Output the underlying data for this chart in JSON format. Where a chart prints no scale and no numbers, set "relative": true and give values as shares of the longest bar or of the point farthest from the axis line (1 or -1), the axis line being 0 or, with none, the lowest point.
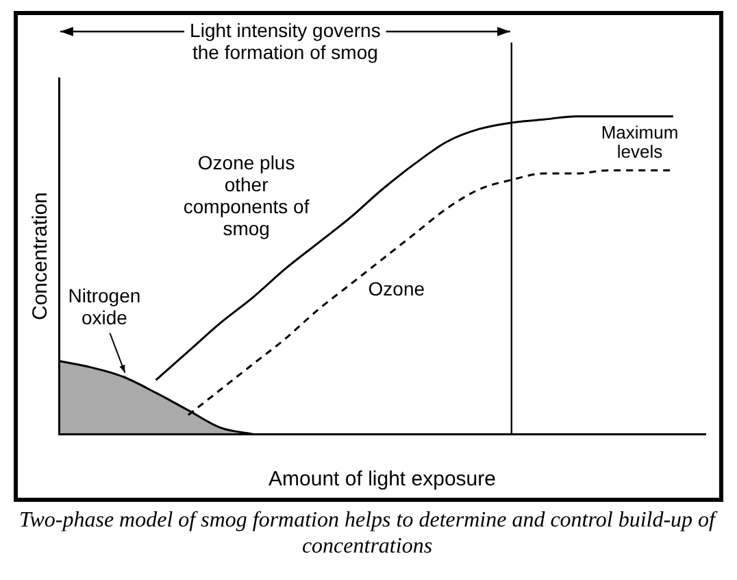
{
  "chart_data": {
    "type": "line",
    "relative": true,
    "xlabel": "Amount of light exposure",
    "ylabel": "Concentration",
    "categories": [
      null,
      null,
      null,
      null,
      null,
      null,
      null,
      null,
      null,
      null,
      null,
      null,
      null,
      null,
      null,
      null,
      null,
      null,
      null,
      null,
      null
    ],
    "series": [
      {
        "name": "Nitrogen oxide",
        "type": "area",
        "color": "#000000",
        "values": [
          0.23,
          0.21,
          0.18,
          0.13,
          0.075,
          0.02,
          0,
          null,
          null,
          null,
          null,
          null,
          null,
          null,
          null,
          null,
          null,
          null,
          null,
          null,
          null
        ]
      },
      {
        "name": "Ozone plus other components of smog",
        "color": "#000000",
        "values": [
          null,
          null,
          null,
          0.17,
          0.26,
          0.35,
          0.43,
          0.52,
          0.6,
          0.68,
          0.77,
          0.85,
          0.92,
          0.96,
          0.98,
          0.99,
          1,
          1,
          1,
          1,
          null
        ]
      },
      {
        "name": "Ozone",
        "color": "#000000",
        "line_style": "dashed",
        "values": [
          null,
          null,
          null,
          null,
          0.06,
          0.14,
          0.22,
          0.3,
          0.39,
          0.47,
          0.55,
          0.63,
          0.71,
          0.77,
          0.8,
          0.82,
          0.82,
          0.83,
          0.83,
          0.83,
          null
        ]
      }
    ],
    "annotations": [
      "Light intensity governs the formation of smog",
      "Maximum levels",
      "Two-phase model of smog formation helps to determine and control build-up of concentrations"
    ],
    "grid": false,
    "legend": false,
    "marker": "none",
    "line_style": "solid"
  }
}
